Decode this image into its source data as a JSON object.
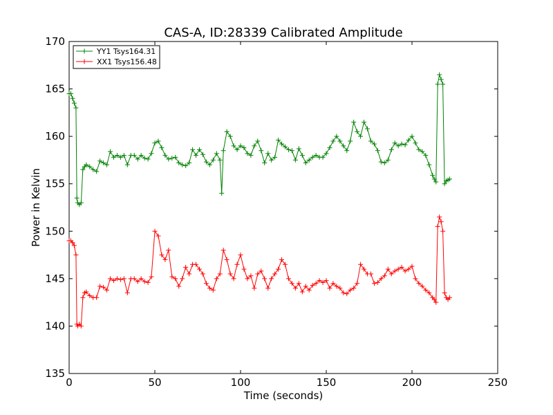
{
  "chart_data": {
    "type": "line",
    "title": "CAS-A, ID:28339 Calibrated Amplitude",
    "xlabel": "Time (seconds)",
    "ylabel": "Power in Kelvin",
    "xlim": [
      0,
      250
    ],
    "ylim": [
      135,
      170
    ],
    "xticks": [
      0,
      50,
      100,
      150,
      200,
      250
    ],
    "yticks": [
      135,
      140,
      145,
      150,
      155,
      160,
      165,
      170
    ],
    "grid": false,
    "legend_position": "top-left",
    "marker": "plus",
    "series": [
      {
        "name": "YY1 Tsys164.31",
        "color": "#008000",
        "x": [
          0,
          1,
          2,
          3,
          4,
          4.5,
          5,
          6,
          7,
          8,
          9,
          10,
          12,
          14,
          16,
          18,
          20,
          22,
          24,
          26,
          28,
          30,
          32,
          34,
          36,
          38,
          40,
          42,
          44,
          46,
          48,
          50,
          52,
          54,
          56,
          58,
          60,
          62,
          64,
          66,
          68,
          70,
          72,
          74,
          76,
          78,
          80,
          82,
          84,
          86,
          88,
          89,
          90,
          92,
          94,
          96,
          98,
          100,
          102,
          104,
          106,
          108,
          110,
          112,
          114,
          116,
          118,
          120,
          122,
          124,
          126,
          128,
          130,
          132,
          134,
          136,
          138,
          140,
          142,
          144,
          146,
          148,
          150,
          152,
          154,
          156,
          158,
          160,
          162,
          164,
          166,
          168,
          170,
          172,
          174,
          176,
          178,
          180,
          182,
          184,
          186,
          188,
          190,
          192,
          194,
          196,
          198,
          200,
          202,
          204,
          206,
          208,
          210,
          212,
          213,
          214,
          215,
          216,
          217,
          218,
          219,
          220,
          221,
          222
        ],
        "values": [
          164.5,
          164.5,
          164,
          163.5,
          163,
          153.5,
          153,
          152.8,
          153,
          156.5,
          156.8,
          157,
          156.8,
          156.5,
          156.3,
          157.4,
          157.2,
          157,
          158.4,
          157.8,
          158,
          157.8,
          158,
          157,
          158,
          158,
          157.6,
          158,
          157.7,
          157.6,
          158.2,
          159.3,
          159.5,
          158.8,
          158,
          157.6,
          157.7,
          157.8,
          157.2,
          157,
          156.9,
          157.2,
          158.6,
          158,
          158.6,
          158.1,
          157.3,
          157,
          157.5,
          158.2,
          157.5,
          154,
          158.5,
          160.5,
          160,
          159,
          158.6,
          159,
          158.8,
          158.2,
          158,
          159,
          159.5,
          158.5,
          157.2,
          158.2,
          157.5,
          157.8,
          159.6,
          159.2,
          158.9,
          158.6,
          158.5,
          157.5,
          158.7,
          158,
          157.2,
          157.5,
          157.8,
          158,
          157.8,
          157.8,
          158.2,
          158.8,
          159.5,
          160,
          159.5,
          159,
          158.5,
          159.5,
          161.5,
          160.5,
          160,
          161.5,
          160.8,
          159.5,
          159.2,
          158.5,
          157.3,
          157.2,
          157.5,
          158.6,
          159.3,
          159,
          159.2,
          159.1,
          159.6,
          160,
          159.3,
          158.6,
          158.4,
          158,
          157,
          155.9,
          155.5,
          155.2,
          165.5,
          166.5,
          166,
          165.5,
          155,
          155.3,
          155.4,
          155.5
        ]
      },
      {
        "name": "XX1 Tsys156.48",
        "color": "#ff0000",
        "x": [
          0,
          1,
          2,
          3,
          4,
          4.5,
          5,
          6,
          7,
          8,
          9,
          10,
          12,
          14,
          16,
          18,
          20,
          22,
          24,
          26,
          28,
          30,
          32,
          34,
          36,
          38,
          40,
          42,
          44,
          46,
          48,
          50,
          52,
          54,
          56,
          58,
          60,
          62,
          64,
          66,
          68,
          70,
          72,
          74,
          76,
          78,
          80,
          82,
          84,
          86,
          88,
          90,
          92,
          94,
          96,
          98,
          100,
          102,
          104,
          106,
          108,
          110,
          112,
          114,
          116,
          118,
          120,
          122,
          124,
          126,
          128,
          130,
          132,
          134,
          136,
          138,
          140,
          142,
          144,
          146,
          148,
          150,
          152,
          154,
          156,
          158,
          160,
          162,
          164,
          166,
          168,
          170,
          172,
          174,
          176,
          178,
          180,
          182,
          184,
          186,
          188,
          190,
          192,
          194,
          196,
          198,
          200,
          202,
          204,
          206,
          208,
          210,
          212,
          213,
          214,
          215,
          216,
          217,
          218,
          219,
          220,
          221,
          222
        ],
        "values": [
          149,
          149,
          148.8,
          148.5,
          147.5,
          140.2,
          140,
          140.2,
          140,
          143,
          143.5,
          143.6,
          143.2,
          143,
          143,
          144.2,
          144.1,
          143.8,
          145,
          144.8,
          145,
          144.9,
          145,
          143.5,
          145,
          145,
          144.7,
          145,
          144.7,
          144.6,
          145.2,
          150,
          149.5,
          147.5,
          147,
          148,
          145.2,
          145,
          144.2,
          145,
          146.2,
          145.5,
          146.5,
          146.5,
          146,
          145.5,
          144.5,
          144,
          143.8,
          145,
          145.5,
          148,
          147,
          145.5,
          145,
          146.5,
          147.5,
          146,
          145,
          145.3,
          144,
          145.5,
          145.8,
          145,
          144,
          145,
          145.5,
          146,
          147,
          146.5,
          145,
          144.5,
          144,
          144.5,
          143.6,
          144.2,
          143.8,
          144.3,
          144.5,
          144.8,
          144.6,
          144.8,
          144,
          144.5,
          144.2,
          144,
          143.5,
          143.4,
          143.8,
          144,
          144.5,
          146.5,
          146,
          145.5,
          145.5,
          144.5,
          144.6,
          145,
          145.3,
          146,
          145.5,
          145.8,
          146,
          146.2,
          145.8,
          146,
          146.3,
          145,
          144.5,
          144.2,
          143.8,
          143.5,
          143,
          142.8,
          142.5,
          150.5,
          151.5,
          151,
          150,
          143.5,
          143,
          142.8,
          143
        ]
      }
    ]
  }
}
